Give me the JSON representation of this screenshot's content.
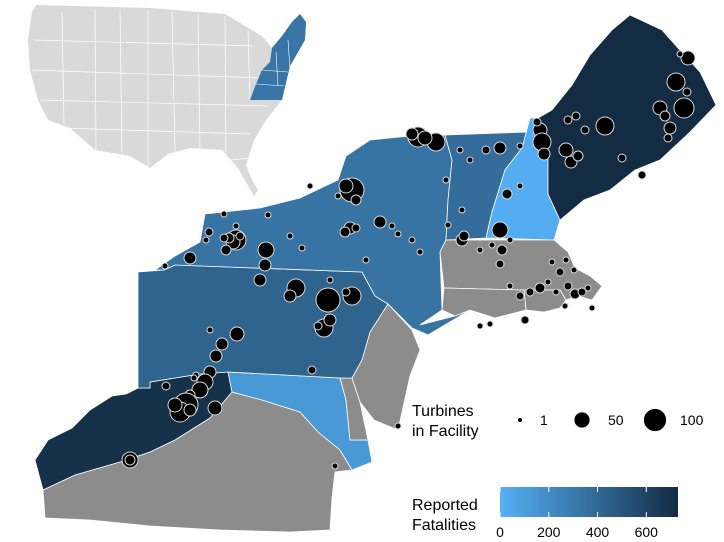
{
  "colors": {
    "low": "#56B1F7",
    "high": "#132B43",
    "no_data": "#8c8c8c",
    "inset_land": "#d9d9d9",
    "border": "#ffffff",
    "point_fill": "#000000",
    "point_stroke": "#d9d9d9"
  },
  "fatality_scale": {
    "min": 0,
    "max": 730
  },
  "states": [
    {
      "name": "Maine",
      "fatalities": 730
    },
    {
      "name": "New Hampshire",
      "fatalities": 20
    },
    {
      "name": "Vermont",
      "fatalities": 370
    },
    {
      "name": "Massachusetts",
      "fatalities": null
    },
    {
      "name": "Rhode Island",
      "fatalities": null
    },
    {
      "name": "Connecticut",
      "fatalities": null
    },
    {
      "name": "New York",
      "fatalities": 340
    },
    {
      "name": "Pennsylvania",
      "fatalities": 420
    },
    {
      "name": "New Jersey",
      "fatalities": null
    },
    {
      "name": "Delaware",
      "fatalities": null
    },
    {
      "name": "Maryland",
      "fatalities": 130
    },
    {
      "name": "West Virginia",
      "fatalities": 700
    },
    {
      "name": "Virginia",
      "fatalities": null
    }
  ],
  "legend": {
    "size_title_line1": "Turbines",
    "size_title_line2": "in Facility",
    "size_items": [
      {
        "label": "1",
        "value": 1
      },
      {
        "label": "50",
        "value": 50
      },
      {
        "label": "100",
        "value": 100
      }
    ],
    "color_title_line1": "Reported",
    "color_title_line2": "Fatalities",
    "color_ticks": [
      {
        "label": "0",
        "value": 0
      },
      {
        "label": "200",
        "value": 200
      },
      {
        "label": "400",
        "value": 400
      },
      {
        "label": "600",
        "value": 600
      }
    ]
  }
}
